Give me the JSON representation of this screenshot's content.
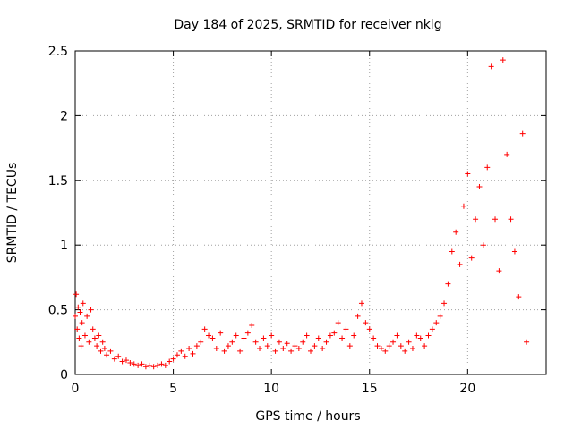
{
  "chart_data": {
    "type": "scatter",
    "title": "Day 184 of 2025, SRMTID for receiver nklg",
    "xlabel": "GPS time / hours",
    "ylabel": "SRMTID / TECUs",
    "xlim": [
      0,
      24
    ],
    "ylim": [
      0,
      2.5
    ],
    "xticks": [
      0,
      5,
      10,
      15,
      20
    ],
    "yticks": [
      0,
      0.5,
      1,
      1.5,
      2,
      2.5
    ],
    "xtick_labels": [
      "0",
      "5",
      "10",
      "15",
      "20"
    ],
    "ytick_labels": [
      "0",
      "0.5",
      "1",
      "1.5",
      "2",
      "2.5"
    ],
    "grid": true,
    "marker": "+",
    "series": [
      {
        "name": "SRMTID",
        "color": "#ff0000",
        "points": [
          [
            0.0,
            0.45
          ],
          [
            0.05,
            0.62
          ],
          [
            0.1,
            0.35
          ],
          [
            0.15,
            0.52
          ],
          [
            0.2,
            0.28
          ],
          [
            0.25,
            0.48
          ],
          [
            0.3,
            0.22
          ],
          [
            0.35,
            0.4
          ],
          [
            0.4,
            0.55
          ],
          [
            0.5,
            0.3
          ],
          [
            0.6,
            0.45
          ],
          [
            0.7,
            0.25
          ],
          [
            0.8,
            0.5
          ],
          [
            0.9,
            0.35
          ],
          [
            1.0,
            0.28
          ],
          [
            1.1,
            0.22
          ],
          [
            1.2,
            0.3
          ],
          [
            1.3,
            0.18
          ],
          [
            1.4,
            0.25
          ],
          [
            1.5,
            0.2
          ],
          [
            1.6,
            0.15
          ],
          [
            1.8,
            0.18
          ],
          [
            2.0,
            0.12
          ],
          [
            2.2,
            0.14
          ],
          [
            2.4,
            0.1
          ],
          [
            2.6,
            0.11
          ],
          [
            2.8,
            0.09
          ],
          [
            3.0,
            0.08
          ],
          [
            3.2,
            0.07
          ],
          [
            3.4,
            0.08
          ],
          [
            3.6,
            0.06
          ],
          [
            3.8,
            0.07
          ],
          [
            4.0,
            0.06
          ],
          [
            4.2,
            0.07
          ],
          [
            4.4,
            0.08
          ],
          [
            4.6,
            0.07
          ],
          [
            4.8,
            0.1
          ],
          [
            5.0,
            0.12
          ],
          [
            5.2,
            0.15
          ],
          [
            5.4,
            0.18
          ],
          [
            5.6,
            0.14
          ],
          [
            5.8,
            0.2
          ],
          [
            6.0,
            0.16
          ],
          [
            6.2,
            0.22
          ],
          [
            6.4,
            0.25
          ],
          [
            6.6,
            0.35
          ],
          [
            6.8,
            0.3
          ],
          [
            7.0,
            0.28
          ],
          [
            7.2,
            0.2
          ],
          [
            7.4,
            0.32
          ],
          [
            7.6,
            0.18
          ],
          [
            7.8,
            0.22
          ],
          [
            8.0,
            0.25
          ],
          [
            8.2,
            0.3
          ],
          [
            8.4,
            0.18
          ],
          [
            8.6,
            0.28
          ],
          [
            8.8,
            0.32
          ],
          [
            9.0,
            0.38
          ],
          [
            9.2,
            0.25
          ],
          [
            9.4,
            0.2
          ],
          [
            9.6,
            0.28
          ],
          [
            9.8,
            0.22
          ],
          [
            10.0,
            0.3
          ],
          [
            10.2,
            0.18
          ],
          [
            10.4,
            0.25
          ],
          [
            10.6,
            0.2
          ],
          [
            10.8,
            0.24
          ],
          [
            11.0,
            0.18
          ],
          [
            11.2,
            0.22
          ],
          [
            11.4,
            0.2
          ],
          [
            11.6,
            0.25
          ],
          [
            11.8,
            0.3
          ],
          [
            12.0,
            0.18
          ],
          [
            12.2,
            0.22
          ],
          [
            12.4,
            0.28
          ],
          [
            12.6,
            0.2
          ],
          [
            12.8,
            0.25
          ],
          [
            13.0,
            0.3
          ],
          [
            13.2,
            0.32
          ],
          [
            13.4,
            0.4
          ],
          [
            13.6,
            0.28
          ],
          [
            13.8,
            0.35
          ],
          [
            14.0,
            0.22
          ],
          [
            14.2,
            0.3
          ],
          [
            14.4,
            0.45
          ],
          [
            14.6,
            0.55
          ],
          [
            14.8,
            0.4
          ],
          [
            15.0,
            0.35
          ],
          [
            15.2,
            0.28
          ],
          [
            15.4,
            0.22
          ],
          [
            15.6,
            0.2
          ],
          [
            15.8,
            0.18
          ],
          [
            16.0,
            0.22
          ],
          [
            16.2,
            0.25
          ],
          [
            16.4,
            0.3
          ],
          [
            16.6,
            0.22
          ],
          [
            16.8,
            0.18
          ],
          [
            17.0,
            0.25
          ],
          [
            17.2,
            0.2
          ],
          [
            17.4,
            0.3
          ],
          [
            17.6,
            0.28
          ],
          [
            17.8,
            0.22
          ],
          [
            18.0,
            0.3
          ],
          [
            18.2,
            0.35
          ],
          [
            18.4,
            0.4
          ],
          [
            18.6,
            0.45
          ],
          [
            18.8,
            0.55
          ],
          [
            19.0,
            0.7
          ],
          [
            19.2,
            0.95
          ],
          [
            19.4,
            1.1
          ],
          [
            19.6,
            0.85
          ],
          [
            19.8,
            1.3
          ],
          [
            20.0,
            1.55
          ],
          [
            20.2,
            0.9
          ],
          [
            20.4,
            1.2
          ],
          [
            20.6,
            1.45
          ],
          [
            20.8,
            1.0
          ],
          [
            21.0,
            1.6
          ],
          [
            21.2,
            2.38
          ],
          [
            21.4,
            1.2
          ],
          [
            21.6,
            0.8
          ],
          [
            21.8,
            2.43
          ],
          [
            22.0,
            1.7
          ],
          [
            22.2,
            1.2
          ],
          [
            22.4,
            0.95
          ],
          [
            22.6,
            0.6
          ],
          [
            22.8,
            1.86
          ],
          [
            23.0,
            0.25
          ]
        ]
      }
    ]
  }
}
